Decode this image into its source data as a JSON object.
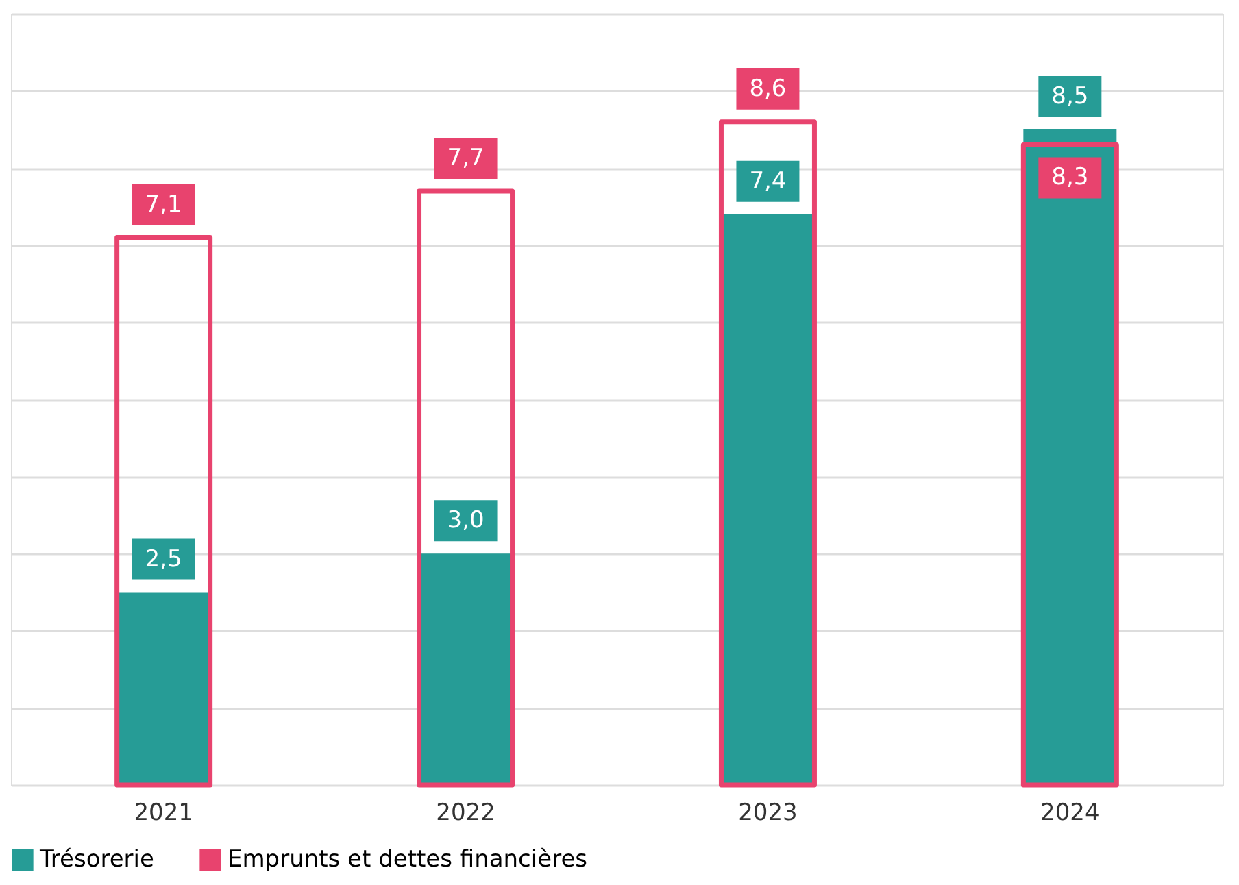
{
  "chart_data": {
    "type": "bar",
    "categories": [
      "2021",
      "2022",
      "2023",
      "2024"
    ],
    "series": [
      {
        "name": "Trésorerie",
        "color": "#269c96",
        "values": [
          2.5,
          3.0,
          7.4,
          8.5
        ],
        "value_labels": [
          "2,5",
          "3,0",
          "7,4",
          "8,5"
        ]
      },
      {
        "name": "Emprunts et dettes financières",
        "color": "#e8436e",
        "values": [
          7.1,
          7.7,
          8.6,
          8.3
        ],
        "value_labels": [
          "7,1",
          "7,7",
          "8,6",
          "8,3"
        ]
      }
    ],
    "ylim": [
      0,
      10
    ],
    "yticks": [
      {
        "value": 0,
        "label": null
      },
      {
        "value": 1,
        "label": null
      },
      {
        "value": 2,
        "label": null
      },
      {
        "value": 3,
        "label": null
      },
      {
        "value": 4,
        "label": null
      },
      {
        "value": 5,
        "label": null
      },
      {
        "value": 6,
        "label": null
      },
      {
        "value": 7,
        "label": null
      },
      {
        "value": 8,
        "label": null
      },
      {
        "value": 9,
        "label": null
      },
      {
        "value": 10,
        "label": null
      }
    ],
    "tick_labels": "x",
    "grid": "y",
    "legend": "bottom"
  }
}
